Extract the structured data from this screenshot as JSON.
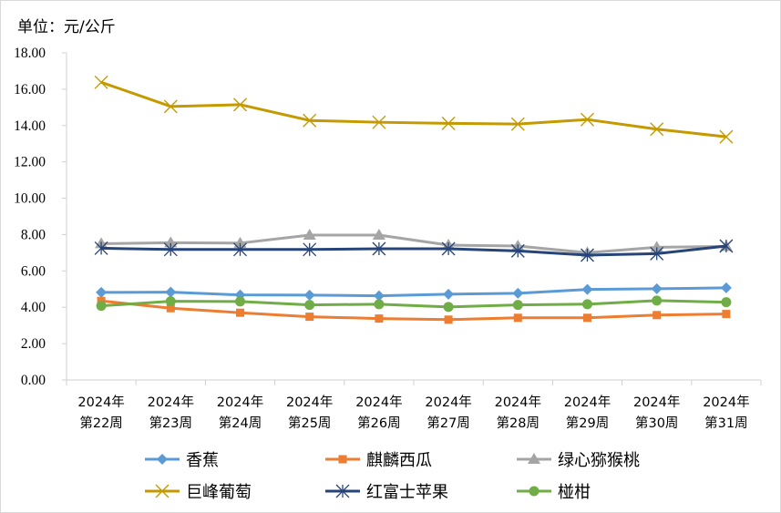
{
  "chart_data": {
    "type": "line",
    "unit_label": "单位：元/公斤",
    "categories": [
      [
        "2024年",
        "第22周"
      ],
      [
        "2024年",
        "第23周"
      ],
      [
        "2024年",
        "第24周"
      ],
      [
        "2024年",
        "第25周"
      ],
      [
        "2024年",
        "第26周"
      ],
      [
        "2024年",
        "第27周"
      ],
      [
        "2024年",
        "第28周"
      ],
      [
        "2024年",
        "第29周"
      ],
      [
        "2024年",
        "第30周"
      ],
      [
        "2024年",
        "第31周"
      ]
    ],
    "ylim": [
      0,
      18
    ],
    "yticks": [
      "0.00",
      "2.00",
      "4.00",
      "6.00",
      "8.00",
      "10.00",
      "12.00",
      "14.00",
      "16.00",
      "18.00"
    ],
    "grid": false,
    "legend_position": "bottom",
    "series": [
      {
        "name": "香蕉",
        "color": "#5B9BD5",
        "marker": "diamond",
        "values": [
          4.82,
          4.83,
          4.68,
          4.67,
          4.63,
          4.72,
          4.77,
          4.98,
          5.02,
          5.07
        ]
      },
      {
        "name": "麒麟西瓜",
        "color": "#ED7D31",
        "marker": "square",
        "values": [
          4.35,
          3.95,
          3.7,
          3.48,
          3.38,
          3.32,
          3.42,
          3.42,
          3.57,
          3.63
        ]
      },
      {
        "name": "绿心猕猴桃",
        "color": "#A5A5A5",
        "marker": "triangle",
        "values": [
          7.5,
          7.55,
          7.53,
          7.97,
          7.97,
          7.42,
          7.37,
          7.0,
          7.3,
          7.35
        ]
      },
      {
        "name": "巨峰葡萄",
        "color": "#C49A00",
        "marker": "x",
        "values": [
          16.38,
          15.05,
          15.15,
          14.28,
          14.18,
          14.12,
          14.08,
          14.33,
          13.8,
          13.38
        ]
      },
      {
        "name": "红富士苹果",
        "color": "#264478",
        "marker": "star",
        "values": [
          7.25,
          7.18,
          7.18,
          7.18,
          7.22,
          7.22,
          7.1,
          6.87,
          6.95,
          7.37
        ]
      },
      {
        "name": "椪柑",
        "color": "#70AD47",
        "marker": "circle",
        "values": [
          4.08,
          4.33,
          4.32,
          4.13,
          4.17,
          4.02,
          4.13,
          4.17,
          4.37,
          4.28
        ]
      }
    ]
  }
}
